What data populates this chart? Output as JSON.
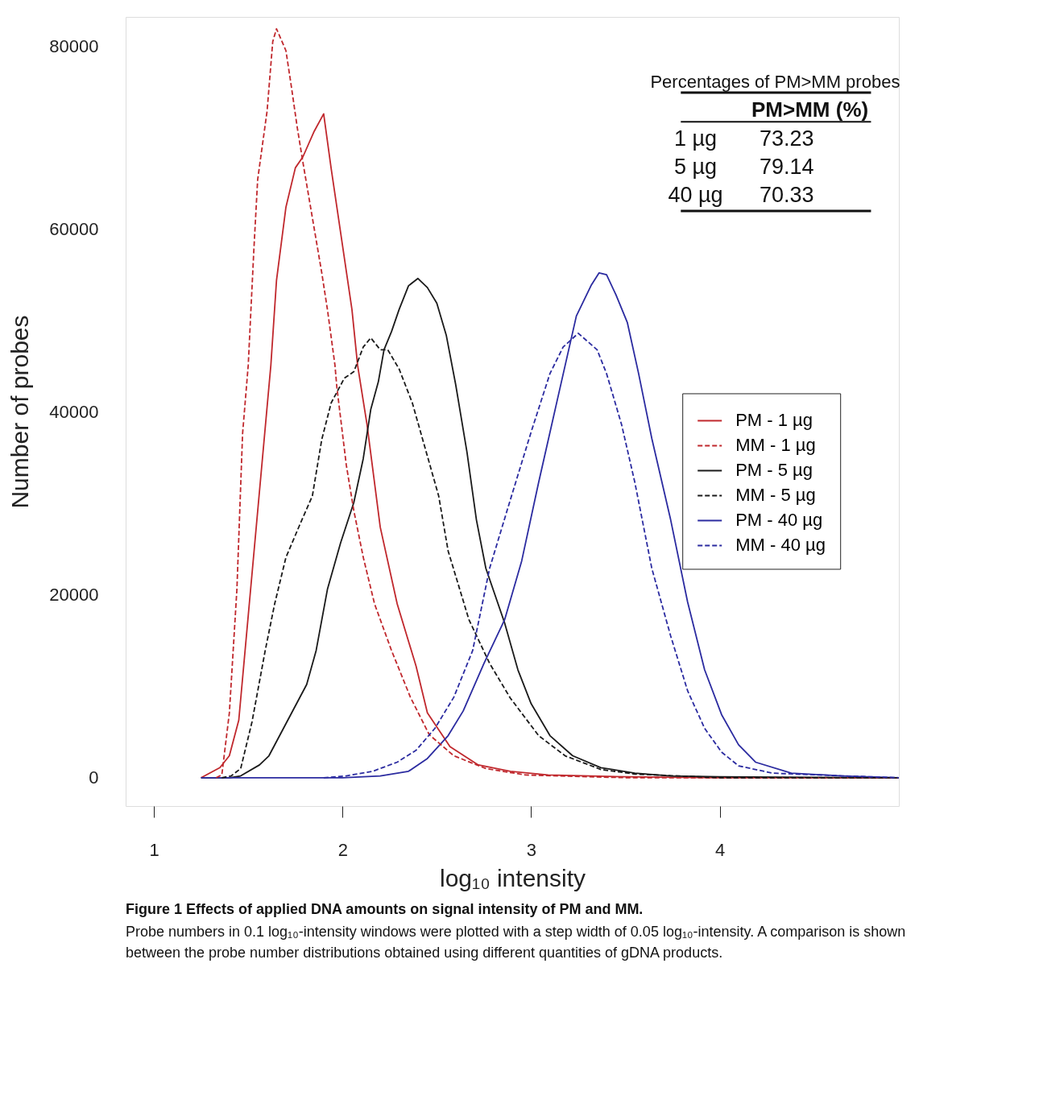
{
  "chart_data": {
    "type": "line",
    "xlabel": "log₁₀ intensity",
    "ylabel": "Number of probes",
    "xlim": [
      0.85,
      4.95
    ],
    "xticks": [
      1,
      2,
      3,
      4
    ],
    "ylim": [
      -3100,
      83200
    ],
    "yticks": [
      0,
      20000,
      40000,
      60000,
      80000
    ],
    "grid": false,
    "legend": "right",
    "marker": "none",
    "annotations": [
      "Percentages of PM>MM probes",
      "PM>MM (%)",
      "1 µg",
      "73.23",
      "5 µg",
      "79.14",
      "40 µg",
      "70.33",
      "Figure 1 Effects of applied DNA amounts on signal intensity of PM and MM.",
      "Probe numbers in 0.1 log₁₀-intensity windows were plotted with a step width of 0.05 log₁₀-intensity. A comparison is shown between the probe number distributions obtained using different quantities of gDNA products."
    ],
    "series": [
      {
        "name": "PM - 1 µg",
        "color": "#c0282d",
        "line_style": "solid",
        "x": [
          1.25,
          1.35,
          1.4,
          1.45,
          1.62,
          1.65,
          1.7,
          1.75,
          1.79,
          1.85,
          1.9,
          1.94,
          2.05,
          2.08,
          2.13,
          2.2,
          2.29,
          2.39,
          2.45,
          2.57,
          2.72,
          2.89,
          3.09,
          3.5,
          4.0,
          4.95
        ],
        "values": [
          0,
          1100,
          2400,
          6300,
          45100,
          54400,
          62400,
          66700,
          67900,
          70700,
          72600,
          66600,
          51200,
          45100,
          38600,
          27400,
          19000,
          12200,
          7100,
          3400,
          1400,
          700,
          300,
          100,
          0,
          0
        ]
      },
      {
        "name": "MM - 1 µg",
        "color": "#c0282d",
        "line_style": "dashed",
        "x": [
          1.33,
          1.36,
          1.4,
          1.44,
          1.47,
          1.5,
          1.53,
          1.55,
          1.6,
          1.63,
          1.65,
          1.7,
          1.73,
          1.76,
          1.79,
          1.89,
          1.92,
          1.96,
          1.97,
          2.02,
          2.06,
          2.11,
          2.17,
          2.26,
          2.36,
          2.46,
          2.59,
          2.76,
          2.97,
          3.5,
          4.95
        ],
        "values": [
          0,
          300,
          7100,
          20600,
          37600,
          45100,
          57800,
          65400,
          72900,
          80500,
          81900,
          79500,
          75400,
          71100,
          67300,
          55200,
          51200,
          45100,
          42700,
          34200,
          29200,
          24100,
          19000,
          13900,
          8800,
          4700,
          2400,
          1000,
          300,
          0,
          0
        ]
      },
      {
        "name": "PM - 5 µg",
        "color": "#1a1a1a",
        "line_style": "solid",
        "x": [
          1.25,
          1.4,
          1.46,
          1.56,
          1.61,
          1.81,
          1.86,
          1.92,
          1.99,
          2.06,
          2.11,
          2.15,
          2.19,
          2.22,
          2.26,
          2.3,
          2.35,
          2.4,
          2.45,
          2.5,
          2.55,
          2.6,
          2.66,
          2.71,
          2.76,
          2.86,
          2.93,
          3.0,
          3.1,
          3.22,
          3.37,
          3.55,
          3.74,
          4.0,
          4.95
        ],
        "values": [
          0,
          0,
          200,
          1400,
          2400,
          10200,
          13900,
          20600,
          25700,
          30100,
          34900,
          40300,
          43300,
          46800,
          48800,
          51200,
          53800,
          54600,
          53600,
          51900,
          48400,
          43000,
          35600,
          28200,
          22900,
          16900,
          11800,
          8100,
          4600,
          2400,
          1100,
          500,
          200,
          100,
          0
        ]
      },
      {
        "name": "MM - 5 µg",
        "color": "#1a1a1a",
        "line_style": "dashed",
        "x": [
          1.36,
          1.41,
          1.46,
          1.52,
          1.59,
          1.64,
          1.7,
          1.77,
          1.84,
          1.89,
          1.94,
          2.01,
          2.06,
          2.11,
          2.15,
          2.2,
          2.24,
          2.3,
          2.37,
          2.44,
          2.51,
          2.56,
          2.67,
          2.78,
          2.89,
          3.04,
          3.18,
          3.37,
          3.55,
          4.0,
          4.95
        ],
        "values": [
          0,
          200,
          1000,
          6100,
          13900,
          19000,
          24100,
          27500,
          30800,
          37000,
          41000,
          43700,
          44400,
          47100,
          48100,
          46800,
          46800,
          44700,
          41000,
          35900,
          30800,
          24800,
          17300,
          12500,
          8700,
          4600,
          2400,
          900,
          400,
          0,
          0
        ]
      },
      {
        "name": "PM - 40 µg",
        "color": "#2b2ba0",
        "line_style": "solid",
        "x": [
          1.25,
          2.0,
          2.2,
          2.35,
          2.45,
          2.56,
          2.64,
          2.75,
          2.86,
          2.95,
          3.04,
          3.13,
          3.24,
          3.32,
          3.36,
          3.4,
          3.45,
          3.51,
          3.57,
          3.64,
          3.74,
          3.83,
          3.92,
          4.01,
          4.1,
          4.19,
          4.38,
          4.65,
          4.95
        ],
        "values": [
          0,
          0,
          200,
          700,
          2100,
          4600,
          7300,
          12500,
          17300,
          23700,
          32300,
          40500,
          50500,
          53900,
          55200,
          55000,
          52800,
          49800,
          44200,
          37100,
          28200,
          19200,
          11800,
          6900,
          3600,
          1700,
          500,
          200,
          0
        ]
      },
      {
        "name": "MM - 40 µg",
        "color": "#2b2ba0",
        "line_style": "dashed",
        "x": [
          1.9,
          2.02,
          2.16,
          2.29,
          2.39,
          2.49,
          2.59,
          2.69,
          2.78,
          2.89,
          3.0,
          3.1,
          3.17,
          3.25,
          3.35,
          3.4,
          3.48,
          3.55,
          3.64,
          3.74,
          3.83,
          3.92,
          4.01,
          4.1,
          4.28,
          4.65,
          4.95
        ],
        "values": [
          0,
          200,
          700,
          1700,
          3000,
          5400,
          8800,
          13900,
          22900,
          30400,
          37800,
          44200,
          47100,
          48600,
          46800,
          44200,
          38600,
          32300,
          22900,
          15500,
          9500,
          5400,
          2800,
          1300,
          500,
          200,
          0
        ]
      }
    ]
  }
}
